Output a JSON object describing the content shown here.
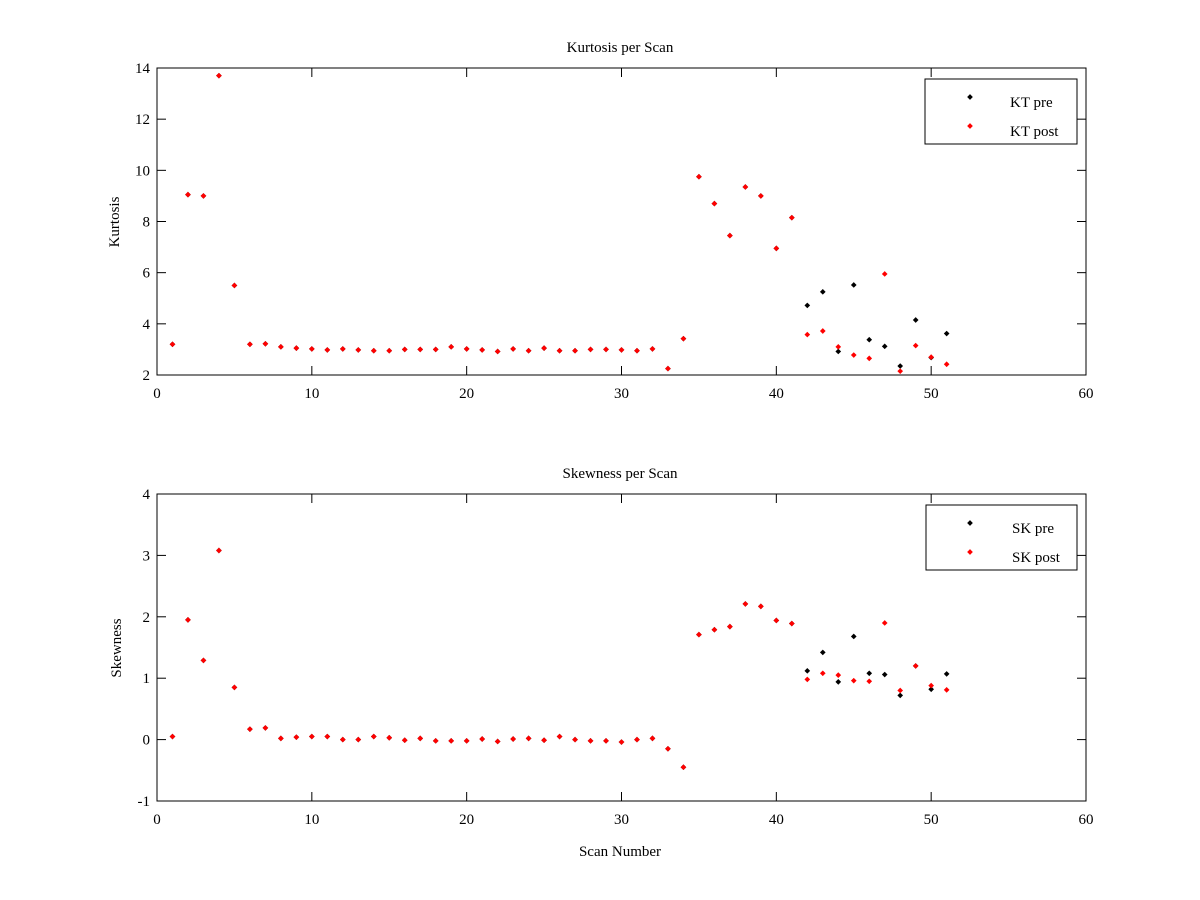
{
  "colors": {
    "pre": "#000000",
    "post": "#ff0000",
    "axes": "#000000",
    "background": "#ffffff"
  },
  "chart_data": [
    {
      "type": "scatter",
      "title": "Kurtosis per Scan",
      "xlabel": "",
      "ylabel": "Kurtosis",
      "xlim": [
        0,
        60
      ],
      "ylim": [
        2,
        14
      ],
      "xticks": [
        0,
        10,
        20,
        30,
        40,
        50,
        60
      ],
      "yticks": [
        2,
        4,
        6,
        8,
        10,
        12,
        14
      ],
      "grid": false,
      "legend_position": "top-right",
      "series": [
        {
          "name": "KT pre",
          "color": "#000000",
          "x": [
            1,
            2,
            3,
            4,
            5,
            6,
            7,
            8,
            9,
            10,
            11,
            12,
            13,
            14,
            15,
            16,
            17,
            18,
            19,
            20,
            21,
            22,
            23,
            24,
            25,
            26,
            27,
            28,
            29,
            30,
            31,
            32,
            33,
            34,
            35,
            36,
            37,
            38,
            39,
            40,
            41,
            42,
            43,
            44,
            45,
            46,
            47,
            48,
            49,
            50,
            51
          ],
          "y": [
            3.2,
            9.05,
            9.0,
            13.7,
            5.5,
            3.2,
            3.22,
            3.1,
            3.05,
            3.02,
            2.98,
            3.02,
            2.98,
            2.95,
            2.95,
            3.0,
            3.0,
            3.0,
            3.1,
            3.02,
            2.98,
            2.92,
            3.02,
            2.95,
            3.05,
            2.95,
            2.95,
            3.0,
            3.0,
            2.98,
            2.95,
            3.02,
            2.25,
            3.42,
            9.75,
            8.7,
            7.45,
            9.35,
            9.0,
            6.95,
            8.15,
            4.72,
            5.25,
            2.92,
            5.52,
            3.38,
            3.12,
            2.35,
            4.15,
            2.68,
            3.62
          ]
        },
        {
          "name": "KT post",
          "color": "#ff0000",
          "x": [
            1,
            2,
            3,
            4,
            5,
            6,
            7,
            8,
            9,
            10,
            11,
            12,
            13,
            14,
            15,
            16,
            17,
            18,
            19,
            20,
            21,
            22,
            23,
            24,
            25,
            26,
            27,
            28,
            29,
            30,
            31,
            32,
            33,
            34,
            35,
            36,
            37,
            38,
            39,
            40,
            41,
            42,
            43,
            44,
            45,
            46,
            47,
            48,
            49,
            50,
            51
          ],
          "y": [
            3.2,
            9.05,
            9.0,
            13.7,
            5.5,
            3.2,
            3.22,
            3.1,
            3.05,
            3.02,
            2.98,
            3.02,
            2.98,
            2.95,
            2.95,
            3.0,
            3.0,
            3.0,
            3.1,
            3.02,
            2.98,
            2.92,
            3.02,
            2.95,
            3.05,
            2.95,
            2.95,
            3.0,
            3.0,
            2.98,
            2.95,
            3.02,
            2.25,
            3.42,
            9.75,
            8.7,
            7.45,
            9.35,
            9.0,
            6.95,
            8.15,
            3.58,
            3.72,
            3.1,
            2.78,
            2.65,
            5.95,
            2.15,
            3.15,
            2.7,
            2.42
          ]
        }
      ]
    },
    {
      "type": "scatter",
      "title": "Skewness per Scan",
      "xlabel": "Scan Number",
      "ylabel": "Skewness",
      "xlim": [
        0,
        60
      ],
      "ylim": [
        -1,
        4
      ],
      "xticks": [
        0,
        10,
        20,
        30,
        40,
        50,
        60
      ],
      "yticks": [
        -1,
        0,
        1,
        2,
        3,
        4
      ],
      "grid": false,
      "legend_position": "top-right",
      "series": [
        {
          "name": "SK pre",
          "color": "#000000",
          "x": [
            1,
            2,
            3,
            4,
            5,
            6,
            7,
            8,
            9,
            10,
            11,
            12,
            13,
            14,
            15,
            16,
            17,
            18,
            19,
            20,
            21,
            22,
            23,
            24,
            25,
            26,
            27,
            28,
            29,
            30,
            31,
            32,
            33,
            34,
            35,
            36,
            37,
            38,
            39,
            40,
            41,
            42,
            43,
            44,
            45,
            46,
            47,
            48,
            49,
            50,
            51
          ],
          "y": [
            0.05,
            1.95,
            1.29,
            3.08,
            0.85,
            0.17,
            0.19,
            0.02,
            0.04,
            0.05,
            0.05,
            0.0,
            0.0,
            0.05,
            0.03,
            -0.01,
            0.02,
            -0.02,
            -0.02,
            -0.02,
            0.01,
            -0.03,
            0.01,
            0.02,
            -0.01,
            0.05,
            0.0,
            -0.02,
            -0.02,
            -0.04,
            0.0,
            0.02,
            -0.15,
            -0.45,
            1.71,
            1.79,
            1.84,
            2.21,
            2.17,
            1.94,
            1.89,
            1.12,
            1.42,
            0.94,
            1.68,
            1.08,
            1.06,
            0.72,
            1.2,
            0.82,
            1.07
          ]
        },
        {
          "name": "SK post",
          "color": "#ff0000",
          "x": [
            1,
            2,
            3,
            4,
            5,
            6,
            7,
            8,
            9,
            10,
            11,
            12,
            13,
            14,
            15,
            16,
            17,
            18,
            19,
            20,
            21,
            22,
            23,
            24,
            25,
            26,
            27,
            28,
            29,
            30,
            31,
            32,
            33,
            34,
            35,
            36,
            37,
            38,
            39,
            40,
            41,
            42,
            43,
            44,
            45,
            46,
            47,
            48,
            49,
            50,
            51
          ],
          "y": [
            0.05,
            1.95,
            1.29,
            3.08,
            0.85,
            0.17,
            0.19,
            0.02,
            0.04,
            0.05,
            0.05,
            0.0,
            0.0,
            0.05,
            0.03,
            -0.01,
            0.02,
            -0.02,
            -0.02,
            -0.02,
            0.01,
            -0.03,
            0.01,
            0.02,
            -0.01,
            0.05,
            0.0,
            -0.02,
            -0.02,
            -0.04,
            0.0,
            0.02,
            -0.15,
            -0.45,
            1.71,
            1.79,
            1.84,
            2.21,
            2.17,
            1.94,
            1.89,
            0.98,
            1.08,
            1.05,
            0.96,
            0.95,
            1.9,
            0.8,
            1.2,
            0.88,
            0.81
          ]
        }
      ]
    }
  ]
}
